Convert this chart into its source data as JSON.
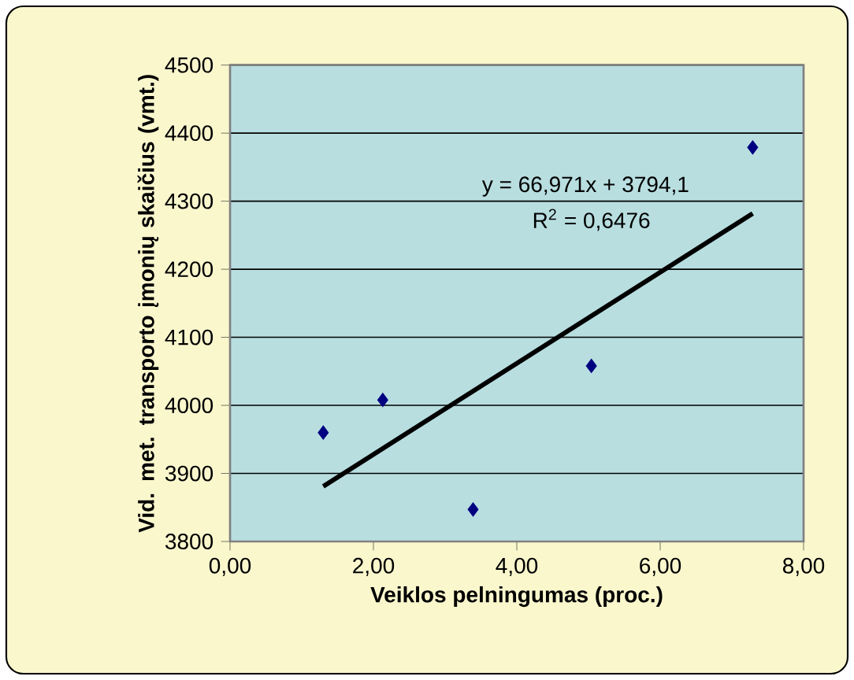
{
  "chart_data": {
    "type": "scatter",
    "xlabel": "Veiklos pelningumas (proc.)",
    "ylabel": "Vid. met. transporto įmonių skaičius (vmt.)",
    "xlim": [
      0,
      8
    ],
    "ylim": [
      3800,
      4500
    ],
    "xticks": [
      {
        "value": 0,
        "label": "0,00"
      },
      {
        "value": 2,
        "label": "2,00"
      },
      {
        "value": 4,
        "label": "4,00"
      },
      {
        "value": 6,
        "label": "6,00"
      },
      {
        "value": 8,
        "label": "8,00"
      }
    ],
    "yticks": [
      3800,
      3900,
      4000,
      4100,
      4200,
      4300,
      4400,
      4500
    ],
    "grid": "y",
    "series": [
      {
        "color": "#000080",
        "marker": "diamond",
        "x": [
          1.3,
          2.13,
          3.39,
          5.04,
          7.29
        ],
        "values": [
          3960,
          4008,
          3847,
          4058,
          4379
        ]
      },
      {
        "type": "line",
        "color": "#000000",
        "marker": "none",
        "line_style": "solid",
        "x": [
          1.3,
          7.29
        ],
        "values": [
          3881,
          4282
        ]
      }
    ],
    "annotations": [
      "y = 66,971x + 3794,1",
      "R$^{2}$ = 0,6476"
    ]
  }
}
